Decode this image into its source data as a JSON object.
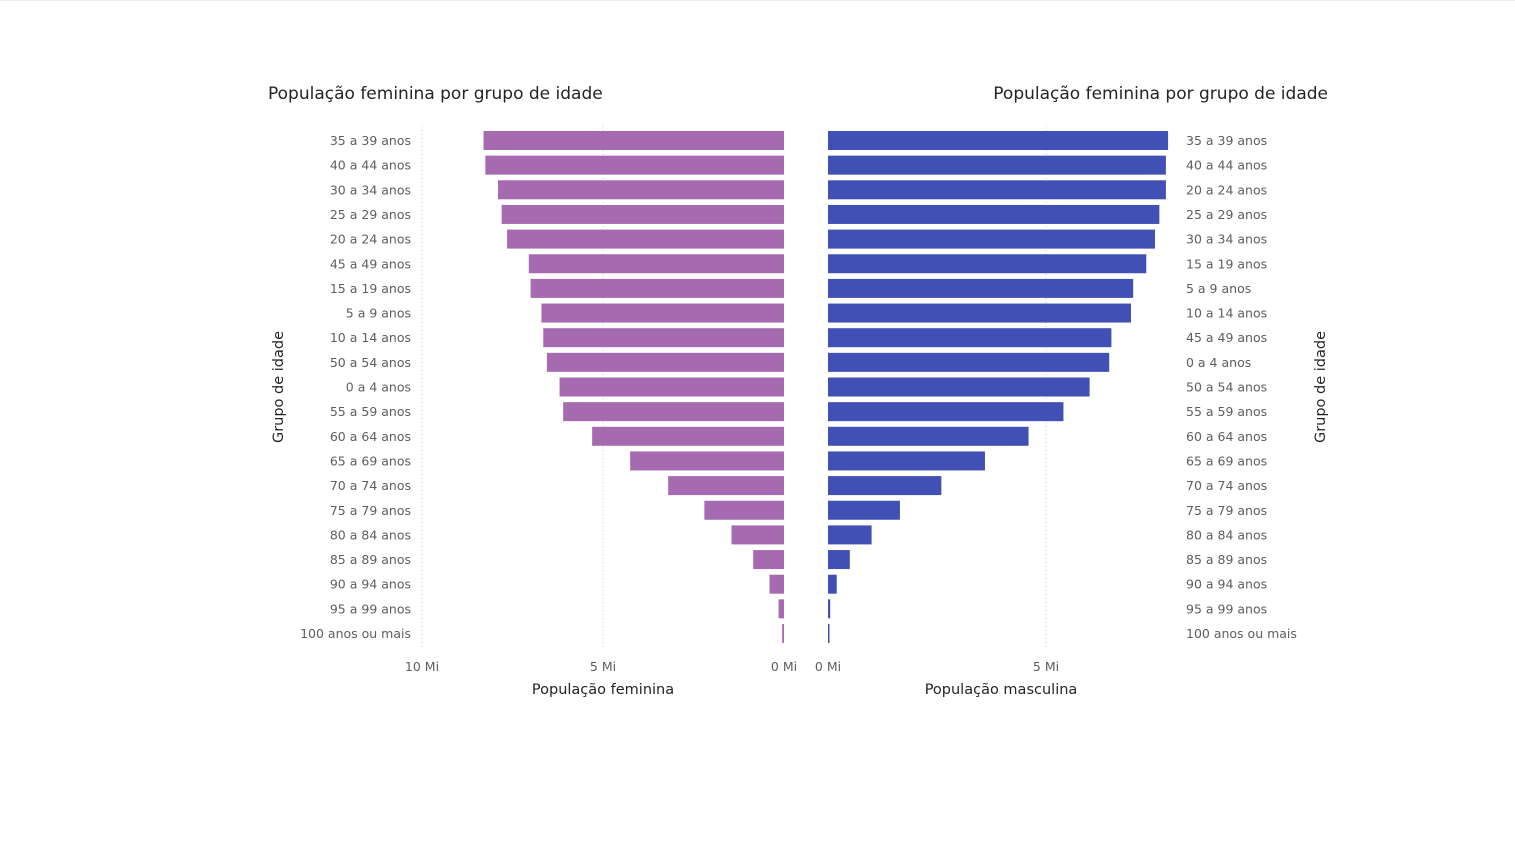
{
  "chart_data": [
    {
      "type": "bar",
      "orientation": "horizontal",
      "title": "População feminina por grupo de idade",
      "xlabel": "População feminina",
      "ylabel": "Grupo de idade",
      "x_reversed": true,
      "xlim": [
        0,
        10
      ],
      "x_ticks": [
        "10 Mi",
        "5 Mi",
        "0 Mi"
      ],
      "color": "#a66ab0",
      "categories": [
        "35 a 39 anos",
        "40 a 44 anos",
        "30 a 34 anos",
        "25 a 29 anos",
        "20 a 24 anos",
        "45 a 49 anos",
        "15 a 19 anos",
        "5 a 9 anos",
        "10 a 14 anos",
        "50 a 54 anos",
        "0 a 4 anos",
        "55 a 59 anos",
        "60 a 64 anos",
        "65 a 69 anos",
        "70 a 74 anos",
        "75 a 79 anos",
        "80 a 84 anos",
        "85 a 89 anos",
        "90 a 94 anos",
        "95 a 99 anos",
        "100 anos ou mais"
      ],
      "values": [
        8.3,
        8.25,
        7.9,
        7.8,
        7.65,
        7.05,
        7.0,
        6.7,
        6.65,
        6.55,
        6.2,
        6.1,
        5.3,
        4.25,
        3.2,
        2.2,
        1.45,
        0.85,
        0.4,
        0.15,
        0.05
      ]
    },
    {
      "type": "bar",
      "orientation": "horizontal",
      "title": "População feminina por grupo de idade",
      "xlabel": "População masculina",
      "ylabel": "Grupo de idade",
      "x_reversed": false,
      "xlim": [
        0,
        8
      ],
      "x_ticks": [
        "0 Mi",
        "5 Mi"
      ],
      "color": "#4150b4",
      "categories": [
        "35 a 39 anos",
        "40 a 44 anos",
        "20 a 24 anos",
        "25 a 29 anos",
        "30 a 34 anos",
        "15 a 19 anos",
        "5 a 9 anos",
        "10 a 14 anos",
        "45 a 49 anos",
        "0 a 4 anos",
        "50 a 54 anos",
        "55 a 59 anos",
        "60 a 64 anos",
        "65 a 69 anos",
        "70 a 74 anos",
        "75 a 79 anos",
        "80 a 84 anos",
        "85 a 89 anos",
        "90 a 94 anos",
        "95 a 99 anos",
        "100 anos ou mais"
      ],
      "values": [
        7.8,
        7.75,
        7.75,
        7.6,
        7.5,
        7.3,
        7.0,
        6.95,
        6.5,
        6.45,
        6.0,
        5.4,
        4.6,
        3.6,
        2.6,
        1.65,
        1.0,
        0.5,
        0.2,
        0.05,
        0.03
      ]
    }
  ]
}
